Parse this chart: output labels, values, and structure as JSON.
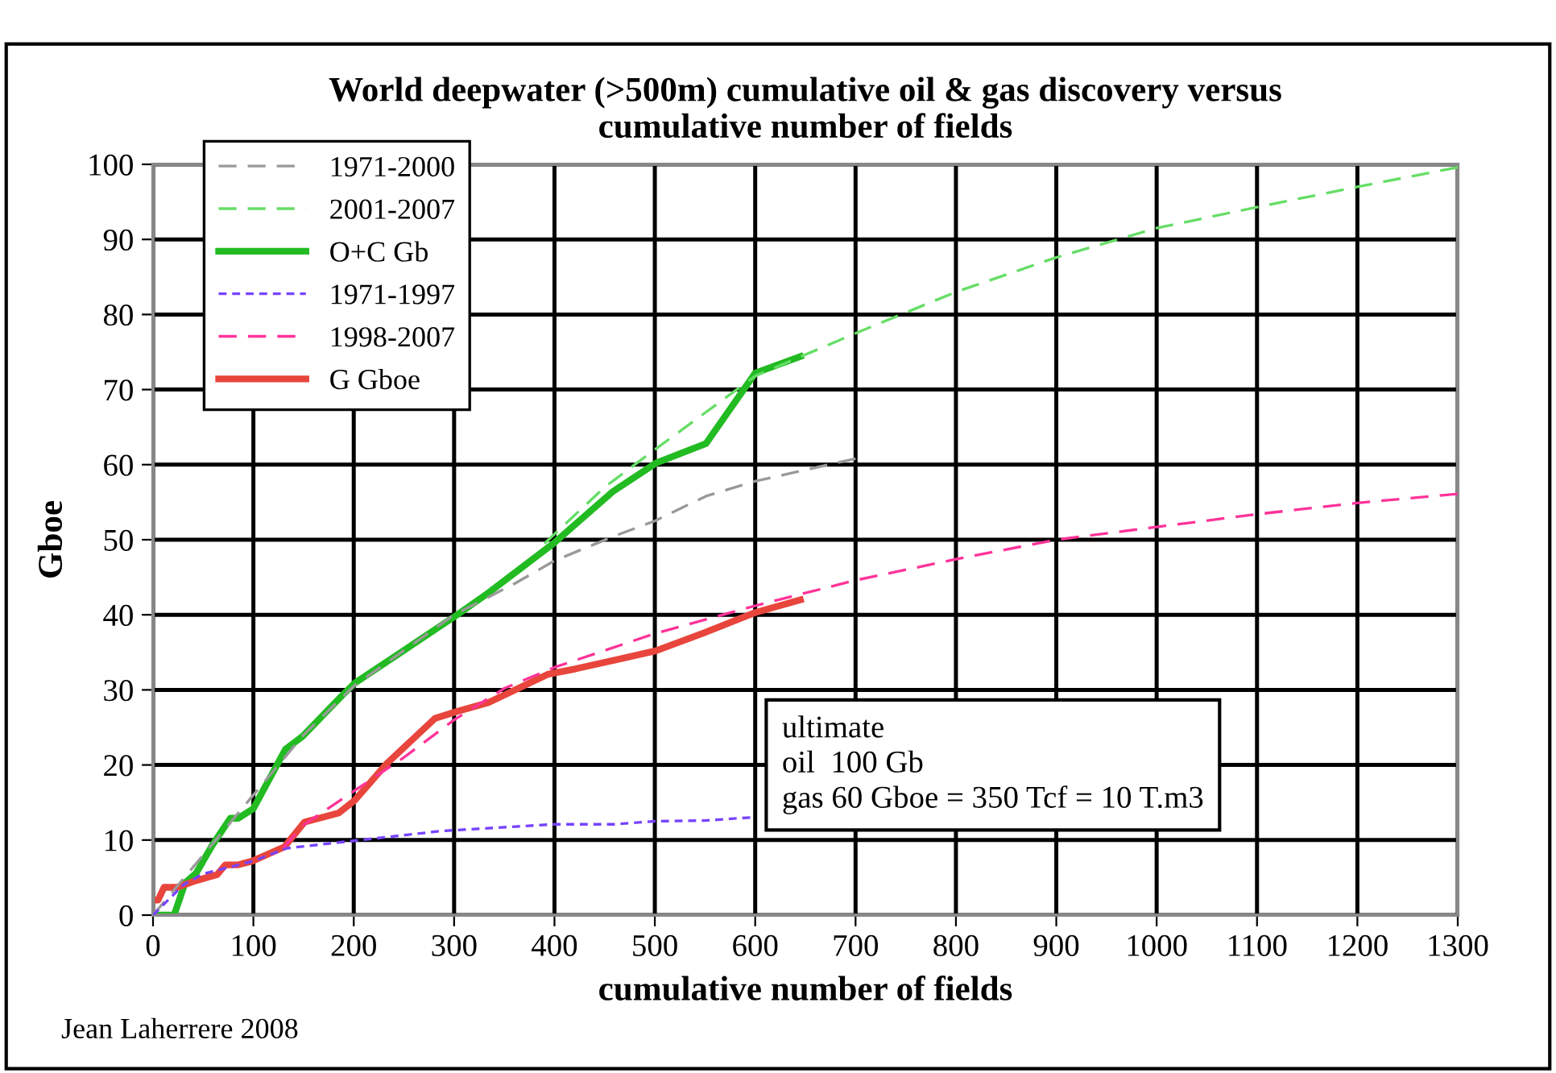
{
  "chart_data": {
    "type": "line",
    "title": "World deepwater (>500m) cumulative oil & gas discovery versus\ncumulative number of fields",
    "xlabel": "cumulative number of fields",
    "ylabel": "Gboe",
    "xlim": [
      0,
      1300
    ],
    "xticks": [
      0,
      100,
      200,
      300,
      400,
      500,
      600,
      700,
      800,
      900,
      1000,
      1100,
      1200,
      1300
    ],
    "ylim": [
      0,
      100
    ],
    "yticks": [
      0,
      10,
      20,
      30,
      40,
      50,
      60,
      70,
      80,
      90,
      100
    ],
    "grid": true,
    "legend": "top left",
    "marker": "none",
    "annotations": [
      "ultimate\noil  100 Gb\ngas 60 Gboe = 350 Tcf = 10 T.m3",
      "Jean Laherrere 2008"
    ],
    "series": [
      {
        "name": "1971-2000",
        "color": "#999999",
        "line_style": "dashed",
        "x": [
          0,
          50,
          100,
          150,
          200,
          300,
          361,
          400,
          458,
          500,
          551,
          600,
          700
        ],
        "values": [
          0,
          8,
          16,
          24,
          30.5,
          40,
          44.2,
          47.2,
          50.4,
          52.5,
          55.8,
          57.8,
          60.8
        ]
      },
      {
        "name": "2001-2007",
        "color": "#66dd66",
        "line_style": "dashed",
        "x": [
          390,
          450,
          500,
          600,
          700,
          800,
          900,
          1000,
          1100,
          1200,
          1300
        ],
        "values": [
          49.5,
          57,
          62,
          71.8,
          77.5,
          83,
          87.6,
          91.5,
          94.3,
          97,
          99.6
        ]
      },
      {
        "name": "O+C Gb",
        "color": "#22bb22",
        "line_style": "solid",
        "x": [
          0,
          21,
          32,
          43,
          59,
          77,
          85,
          100,
          132,
          149,
          188,
          201,
          302,
          334,
          399,
          458,
          501,
          551,
          600,
          645
        ],
        "values": [
          0,
          0,
          4.3,
          5.6,
          9.3,
          12.9,
          12.9,
          14.2,
          22.1,
          23.8,
          29.2,
          30.9,
          39.9,
          42.9,
          49.5,
          56.4,
          60.2,
          62.8,
          72.2,
          74.4
        ]
      },
      {
        "name": "1971-1997",
        "color": "#7744ff",
        "line_style": "dotted",
        "x": [
          0,
          30,
          50,
          100,
          133,
          200,
          287,
          400,
          460,
          500,
          550,
          595
        ],
        "values": [
          0,
          4,
          5.5,
          7.2,
          8.9,
          9.9,
          11.2,
          12.1,
          12.1,
          12.5,
          12.6,
          13
        ]
      },
      {
        "name": "1998-2007",
        "color": "#ff3399",
        "line_style": "dashed",
        "x": [
          130,
          150,
          200,
          250,
          300,
          350,
          400,
          500,
          600,
          700,
          800,
          900,
          1000,
          1100,
          1200,
          1300
        ],
        "values": [
          9,
          12,
          16.5,
          21,
          26,
          30.2,
          33,
          37.5,
          41.2,
          44.6,
          47.4,
          50,
          51.7,
          53.4,
          54.9,
          56.1
        ]
      },
      {
        "name": "G Gboe",
        "color": "#e8453c",
        "line_style": "solid",
        "x": [
          0,
          5,
          11,
          24,
          43,
          64,
          72,
          85,
          99,
          131,
          151,
          185,
          201,
          233,
          281,
          302,
          334,
          394,
          421,
          501,
          549,
          600,
          645
        ],
        "values": [
          2,
          2,
          3.7,
          3.7,
          4.6,
          5.4,
          6.7,
          6.7,
          7.2,
          9.1,
          12.4,
          13.6,
          15.3,
          20.2,
          26.2,
          27.1,
          28.3,
          32.1,
          32.8,
          35.2,
          37.6,
          40.3,
          42
        ]
      }
    ]
  }
}
